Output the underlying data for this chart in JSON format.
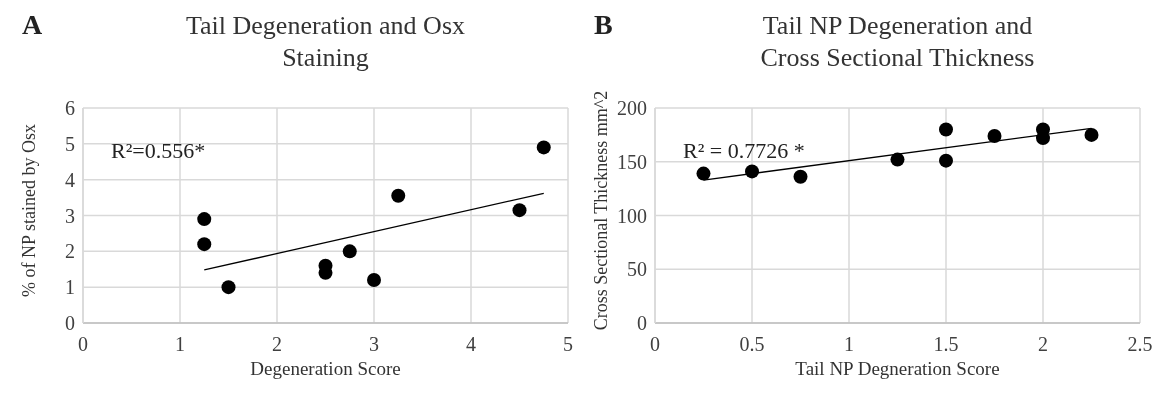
{
  "chart_data": [
    {
      "type": "scatter",
      "title": "Tail Degeneration  and Osx Staining",
      "xlabel": "Degeneration Score",
      "ylabel": "% of NP stained by Osx",
      "annotations": [
        "A",
        "R²=0.556*"
      ],
      "xlim": [
        0,
        5
      ],
      "xticks": [
        0,
        1,
        2,
        3,
        4,
        5
      ],
      "ylim": [
        0,
        6
      ],
      "yticks": [
        0,
        1,
        2,
        3,
        4,
        5,
        6
      ],
      "grid": true,
      "series": [
        {
          "color": "#000000",
          "marker": "circle",
          "x": [
            1.25,
            1.25,
            1.5,
            2.5,
            2.5,
            2.75,
            3.0,
            3.25,
            4.5,
            4.75
          ],
          "values": [
            2.9,
            2.2,
            1.0,
            1.6,
            1.4,
            2.0,
            1.2,
            3.55,
            3.15,
            4.9
          ]
        },
        {
          "type": "line",
          "color": "#000000",
          "x": [
            1.25,
            4.75
          ],
          "values": [
            1.48,
            3.62
          ]
        }
      ]
    },
    {
      "type": "scatter",
      "title": "Tail NP Degeneration and Cross Sectional Thickness",
      "xlabel": "Tail NP Degneration Score",
      "ylabel": "Cross Sectional Thickness mm^2",
      "annotations": [
        "B",
        "R² = 0.7726 *"
      ],
      "xlim": [
        0,
        2.5
      ],
      "xticks": [
        0,
        0.5,
        1,
        1.5,
        2,
        2.5
      ],
      "ylim": [
        0,
        200
      ],
      "yticks": [
        0,
        50,
        100,
        150,
        200
      ],
      "grid": true,
      "series": [
        {
          "color": "#000000",
          "marker": "circle",
          "x": [
            0.25,
            0.5,
            0.75,
            1.25,
            1.5,
            1.5,
            1.75,
            2,
            2,
            2.25
          ],
          "values": [
            139,
            141,
            136,
            152,
            180,
            151,
            174,
            180,
            172,
            175
          ]
        },
        {
          "type": "line",
          "color": "#000000",
          "x": [
            0.25,
            2.25
          ],
          "values": [
            133,
            181
          ]
        }
      ]
    }
  ]
}
